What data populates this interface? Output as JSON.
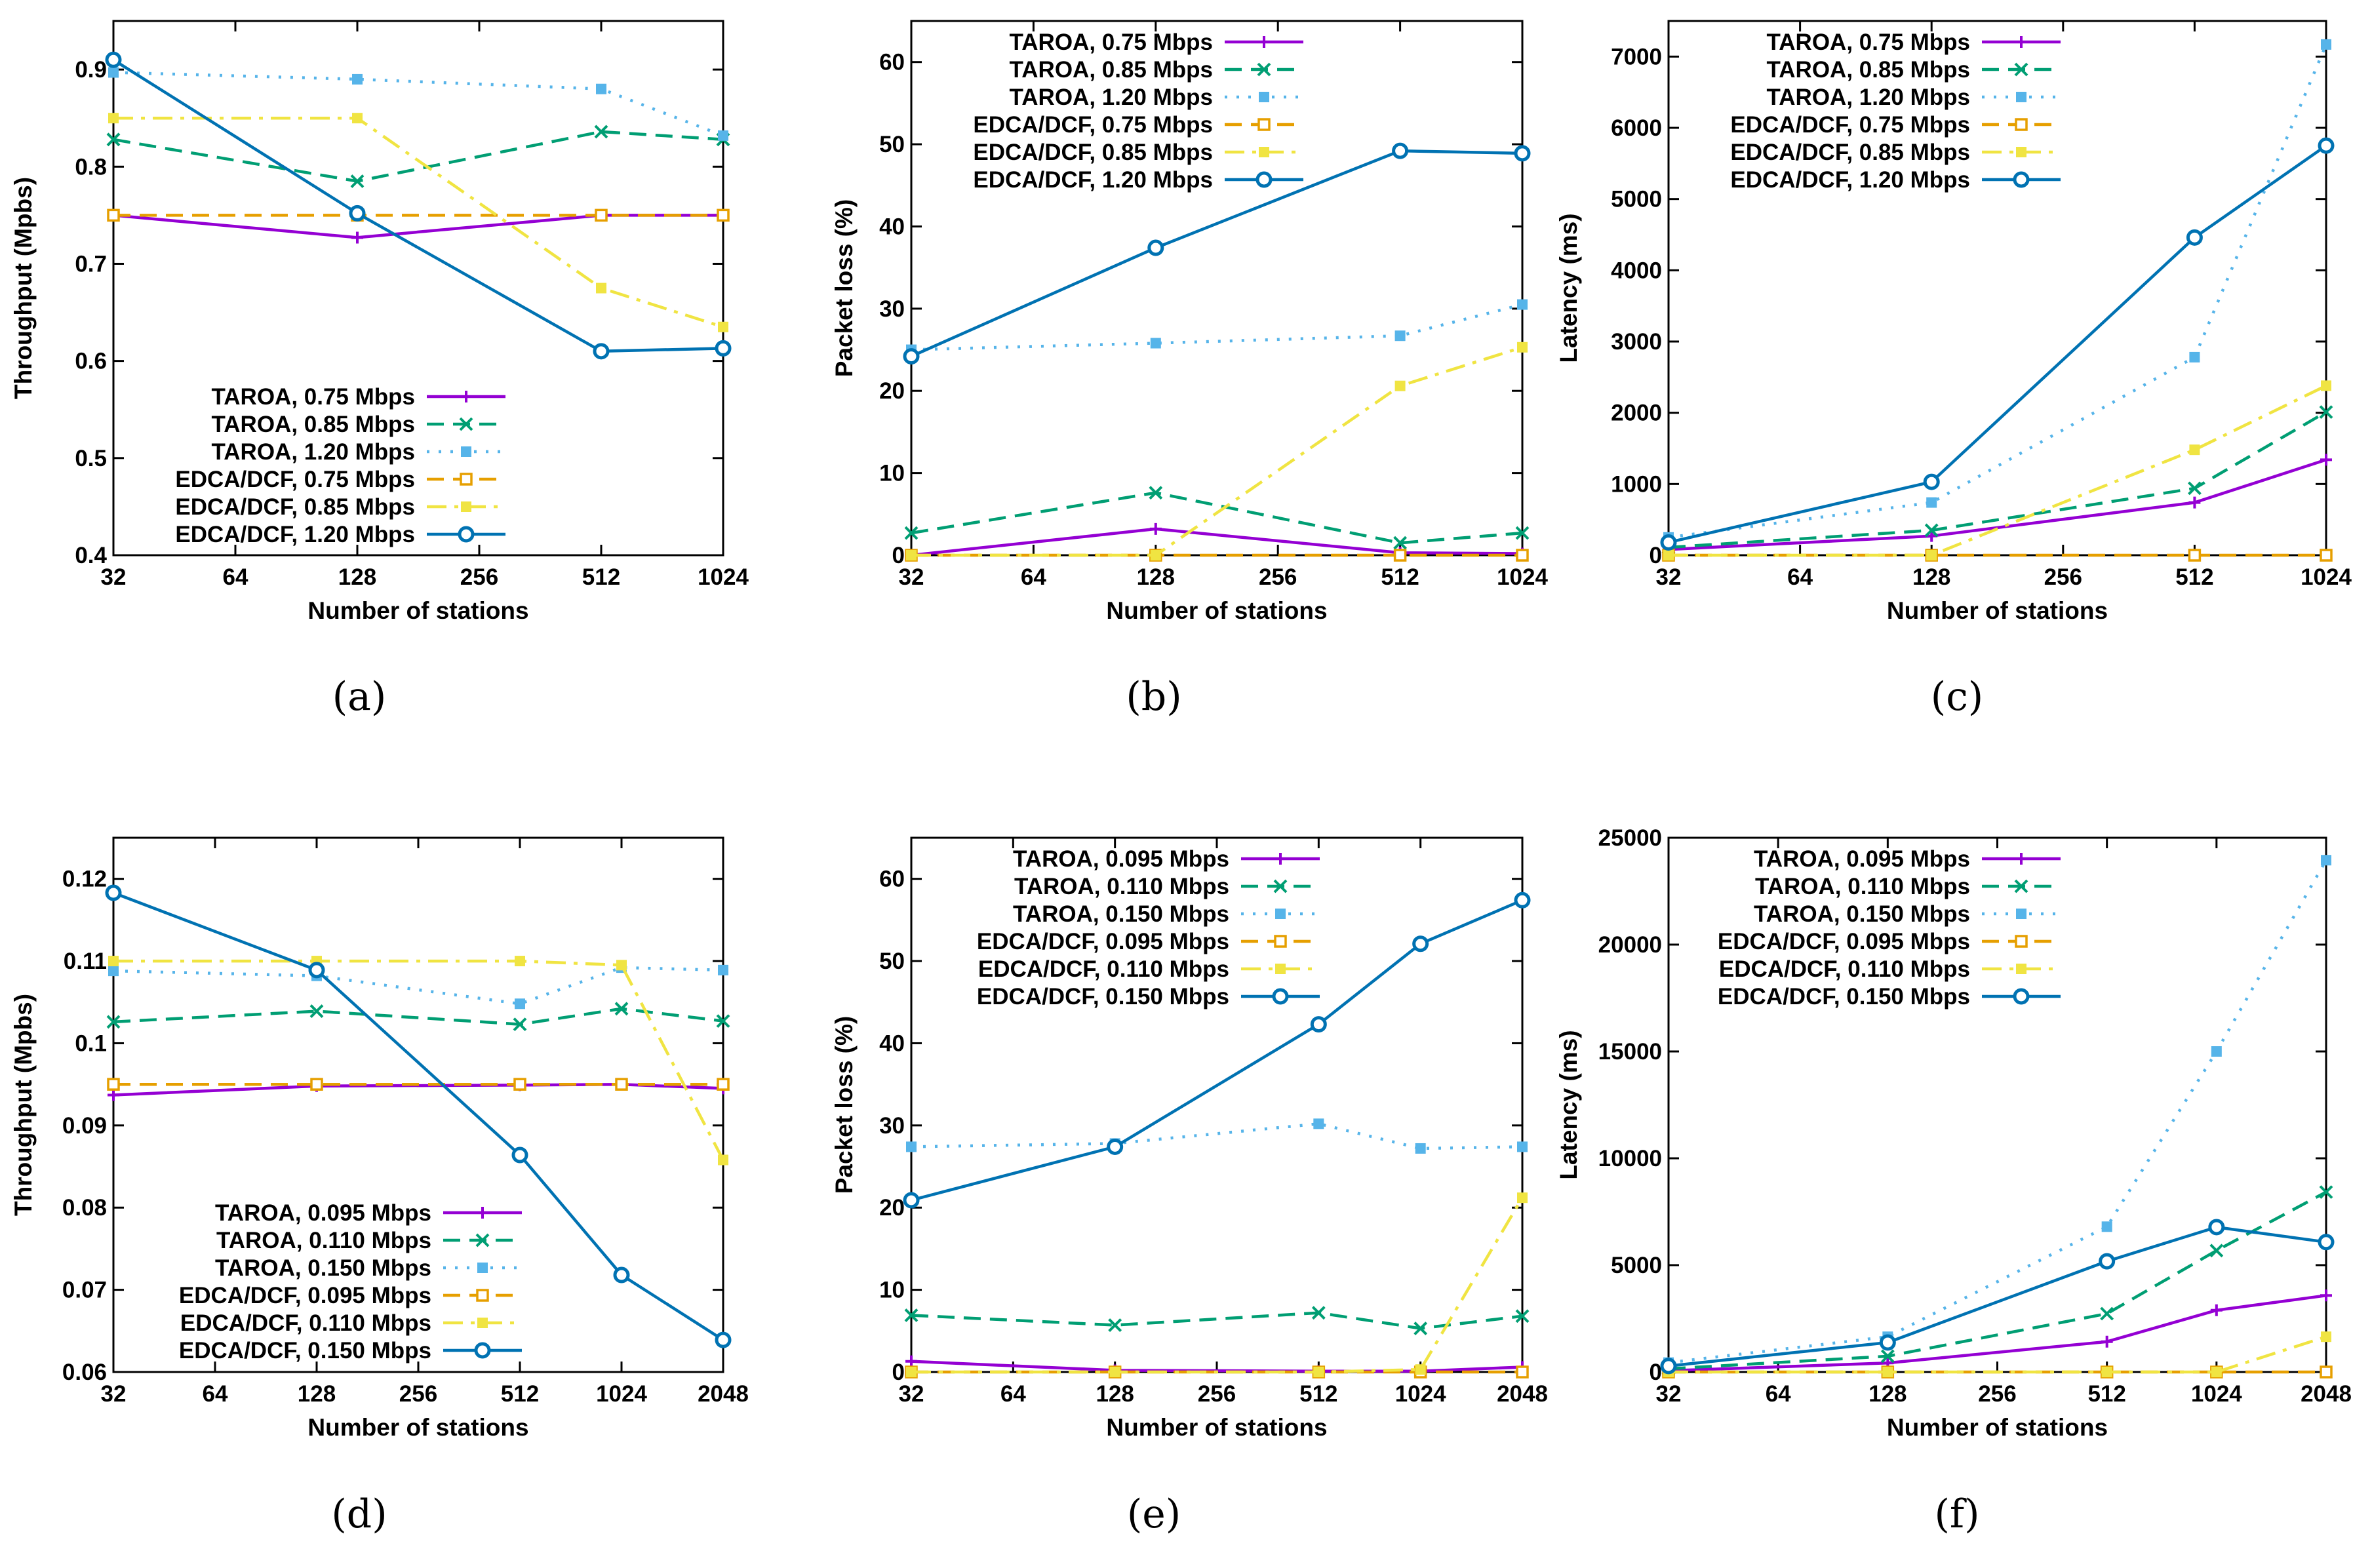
{
  "colors": {
    "taroa_low": "#9400d3",
    "taroa_mid": "#009e73",
    "taroa_high": "#56b4e9",
    "edca_low": "#e69f00",
    "edca_mid": "#f0e442",
    "edca_high": "#0072b2"
  },
  "chart_data": [
    {
      "id": "a",
      "type": "line",
      "caption": "(a)",
      "xlabel": "Number of stations",
      "ylabel": "Throughput (Mpbs)",
      "x_scale": "log2",
      "x": [
        32,
        128,
        512,
        1024
      ],
      "xticks": [
        "32",
        "64",
        "128",
        "256",
        "512",
        "1024"
      ],
      "ylim": [
        0.4,
        0.95
      ],
      "yticks": [
        "0.4",
        "0.5",
        "0.6",
        "0.7",
        "0.8",
        "0.9"
      ],
      "legend_position": "bottom-right",
      "series": [
        {
          "name": "TAROA, 0.75 Mbps",
          "values": [
            0.75,
            0.727,
            0.75,
            0.75
          ]
        },
        {
          "name": "TAROA, 0.85 Mbps",
          "values": [
            0.828,
            0.785,
            0.836,
            0.828
          ]
        },
        {
          "name": "TAROA, 1.20 Mbps",
          "values": [
            0.897,
            0.89,
            0.88,
            0.832
          ]
        },
        {
          "name": "EDCA/DCF, 0.75 Mbps",
          "values": [
            0.75,
            0.75,
            0.75,
            0.75
          ]
        },
        {
          "name": "EDCA/DCF, 0.85 Mbps",
          "values": [
            0.85,
            0.85,
            0.675,
            0.635
          ]
        },
        {
          "name": "EDCA/DCF, 1.20 Mbps",
          "values": [
            0.91,
            0.752,
            0.61,
            0.613
          ]
        }
      ]
    },
    {
      "id": "b",
      "type": "line",
      "caption": "(b)",
      "xlabel": "Number of stations",
      "ylabel": "Packet loss (%)",
      "x_scale": "log2",
      "x": [
        32,
        128,
        512,
        1024
      ],
      "xticks": [
        "32",
        "64",
        "128",
        "256",
        "512",
        "1024"
      ],
      "ylim": [
        0,
        65
      ],
      "yticks": [
        "0",
        "10",
        "20",
        "30",
        "40",
        "50",
        "60"
      ],
      "legend_position": "top-left",
      "series": [
        {
          "name": "TAROA, 0.75 Mbps",
          "values": [
            0.0,
            3.2,
            0.3,
            0.2
          ]
        },
        {
          "name": "TAROA, 0.85 Mbps",
          "values": [
            2.7,
            7.6,
            1.5,
            2.7
          ]
        },
        {
          "name": "TAROA, 1.20 Mbps",
          "values": [
            25.0,
            25.8,
            26.7,
            30.5
          ]
        },
        {
          "name": "EDCA/DCF, 0.75 Mbps",
          "values": [
            0.0,
            0.0,
            0.0,
            0.0
          ]
        },
        {
          "name": "EDCA/DCF, 0.85 Mbps",
          "values": [
            0.0,
            0.0,
            20.6,
            25.3
          ]
        },
        {
          "name": "EDCA/DCF, 1.20 Mbps",
          "values": [
            24.2,
            37.4,
            49.2,
            48.9
          ]
        }
      ]
    },
    {
      "id": "c",
      "type": "line",
      "caption": "(c)",
      "xlabel": "Number of stations",
      "ylabel": "Latency (ms)",
      "x_scale": "log2",
      "x": [
        32,
        128,
        512,
        1024
      ],
      "xticks": [
        "32",
        "64",
        "128",
        "256",
        "512",
        "1024"
      ],
      "ylim": [
        0,
        7500
      ],
      "yticks": [
        "0",
        "1000",
        "2000",
        "3000",
        "4000",
        "5000",
        "6000",
        "7000"
      ],
      "legend_position": "top-left",
      "series": [
        {
          "name": "TAROA, 0.75 Mbps",
          "values": [
            80,
            270,
            740,
            1340
          ]
        },
        {
          "name": "TAROA, 0.85 Mbps",
          "values": [
            110,
            350,
            940,
            2010
          ]
        },
        {
          "name": "TAROA, 1.20 Mbps",
          "values": [
            250,
            740,
            2780,
            7170
          ]
        },
        {
          "name": "EDCA/DCF, 0.75 Mbps",
          "values": [
            0,
            0,
            0,
            0
          ]
        },
        {
          "name": "EDCA/DCF, 0.85 Mbps",
          "values": [
            0,
            0,
            1480,
            2380
          ]
        },
        {
          "name": "EDCA/DCF, 1.20 Mbps",
          "values": [
            180,
            1030,
            4460,
            5750
          ]
        }
      ]
    },
    {
      "id": "d",
      "type": "line",
      "caption": "(d)",
      "xlabel": "Number of stations",
      "ylabel": "Throughput (Mpbs)",
      "x_scale": "log2",
      "x": [
        32,
        128,
        512,
        1024,
        2048
      ],
      "xticks": [
        "32",
        "64",
        "128",
        "256",
        "512",
        "1024",
        "2048"
      ],
      "ylim": [
        0.06,
        0.125
      ],
      "yticks": [
        "0.06",
        "0.07",
        "0.08",
        "0.09",
        "0.1",
        "0.11",
        "0.12"
      ],
      "legend_position": "bottom-left",
      "series": [
        {
          "name": "TAROA, 0.095 Mbps",
          "values": [
            0.0937,
            0.0948,
            0.0949,
            0.095,
            0.0945
          ]
        },
        {
          "name": "TAROA, 0.110 Mbps",
          "values": [
            0.1026,
            0.1039,
            0.1023,
            0.1042,
            0.1027
          ]
        },
        {
          "name": "TAROA, 0.150 Mbps",
          "values": [
            0.1088,
            0.1082,
            0.1048,
            0.1092,
            0.1089
          ]
        },
        {
          "name": "EDCA/DCF, 0.095 Mbps",
          "values": [
            0.095,
            0.095,
            0.095,
            0.095,
            0.095
          ]
        },
        {
          "name": "EDCA/DCF, 0.110 Mbps",
          "values": [
            0.11,
            0.11,
            0.11,
            0.1095,
            0.0858
          ]
        },
        {
          "name": "EDCA/DCF, 0.150 Mbps",
          "values": [
            0.1183,
            0.1089,
            0.0864,
            0.0718,
            0.0639
          ]
        }
      ]
    },
    {
      "id": "e",
      "type": "line",
      "caption": "(e)",
      "xlabel": "Number of stations",
      "ylabel": "Packet loss (%)",
      "x_scale": "log2",
      "x": [
        32,
        128,
        512,
        1024,
        2048
      ],
      "xticks": [
        "32",
        "64",
        "128",
        "256",
        "512",
        "1024",
        "2048"
      ],
      "ylim": [
        0,
        65
      ],
      "yticks": [
        "0",
        "10",
        "20",
        "30",
        "40",
        "50",
        "60"
      ],
      "legend_position": "top-left",
      "series": [
        {
          "name": "TAROA, 0.095 Mbps",
          "values": [
            1.3,
            0.2,
            0.1,
            0.1,
            0.6
          ]
        },
        {
          "name": "TAROA, 0.110 Mbps",
          "values": [
            6.9,
            5.7,
            7.2,
            5.3,
            6.8
          ]
        },
        {
          "name": "TAROA, 0.150 Mbps",
          "values": [
            27.4,
            27.8,
            30.2,
            27.2,
            27.4
          ]
        },
        {
          "name": "EDCA/DCF, 0.095 Mbps",
          "values": [
            0.0,
            0.0,
            0.0,
            0.0,
            0.0
          ]
        },
        {
          "name": "EDCA/DCF, 0.110 Mbps",
          "values": [
            0.0,
            0.0,
            0.0,
            0.3,
            21.2
          ]
        },
        {
          "name": "EDCA/DCF, 0.150 Mbps",
          "values": [
            20.9,
            27.4,
            42.3,
            52.1,
            57.4
          ]
        }
      ]
    },
    {
      "id": "f",
      "type": "line",
      "caption": "(f)",
      "xlabel": "Number of stations",
      "ylabel": "Latency (ms)",
      "x_scale": "log2",
      "x": [
        32,
        128,
        512,
        1024,
        2048
      ],
      "xticks": [
        "32",
        "64",
        "128",
        "256",
        "512",
        "1024",
        "2048"
      ],
      "ylim": [
        0,
        25000
      ],
      "yticks": [
        "0",
        "5000",
        "10000",
        "15000",
        "20000",
        "25000"
      ],
      "legend_position": "top-left",
      "series": [
        {
          "name": "TAROA, 0.095 Mbps",
          "values": [
            60,
            420,
            1420,
            2890,
            3580
          ]
        },
        {
          "name": "TAROA, 0.110 Mbps",
          "values": [
            150,
            740,
            2730,
            5680,
            8420
          ]
        },
        {
          "name": "TAROA, 0.150 Mbps",
          "values": [
            440,
            1650,
            6800,
            15000,
            23950
          ]
        },
        {
          "name": "EDCA/DCF, 0.095 Mbps",
          "values": [
            0,
            0,
            0,
            0,
            0
          ]
        },
        {
          "name": "EDCA/DCF, 0.110 Mbps",
          "values": [
            0,
            0,
            0,
            0,
            1650
          ]
        },
        {
          "name": "EDCA/DCF, 0.150 Mbps",
          "values": [
            280,
            1380,
            5180,
            6780,
            6080
          ]
        }
      ]
    }
  ]
}
